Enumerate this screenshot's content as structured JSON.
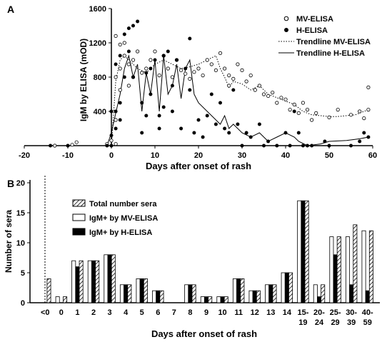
{
  "chart_data": [
    {
      "panel": "A",
      "type": "scatter",
      "xlabel": "Days after onset of rash",
      "ylabel": "IgM by ELISA (mOD)",
      "xlim": [
        -20,
        60
      ],
      "ylim": [
        0,
        1600
      ],
      "x_ticks": [
        -20,
        -10,
        0,
        10,
        20,
        30,
        40,
        50,
        60
      ],
      "y_ticks": [
        400,
        800,
        1200,
        1600
      ],
      "legend_position": "top-right",
      "series": [
        {
          "name": "MV-ELISA",
          "marker": "open-circle",
          "points": [
            [
              -13,
              0
            ],
            [
              -9,
              10
            ],
            [
              -8,
              40
            ],
            [
              -1,
              20
            ],
            [
              0,
              60
            ],
            [
              1,
              20
            ],
            [
              1,
              300
            ],
            [
              1,
              800
            ],
            [
              1,
              1280
            ],
            [
              2,
              650
            ],
            [
              2,
              900
            ],
            [
              2,
              1180
            ],
            [
              3,
              1050
            ],
            [
              3,
              1200
            ],
            [
              4,
              700
            ],
            [
              4,
              950
            ],
            [
              5,
              800
            ],
            [
              5,
              1000
            ],
            [
              6,
              1100
            ],
            [
              7,
              850
            ],
            [
              8,
              900
            ],
            [
              9,
              1000
            ],
            [
              10,
              1100
            ],
            [
              11,
              820
            ],
            [
              12,
              1050
            ],
            [
              13,
              900
            ],
            [
              14,
              800
            ],
            [
              15,
              1000
            ],
            [
              16,
              880
            ],
            [
              17,
              840
            ],
            [
              18,
              780
            ],
            [
              19,
              860
            ],
            [
              20,
              900
            ],
            [
              21,
              820
            ],
            [
              22,
              1000
            ],
            [
              23,
              950
            ],
            [
              24,
              880
            ],
            [
              25,
              1080
            ],
            [
              26,
              900
            ],
            [
              27,
              700
            ],
            [
              27,
              820
            ],
            [
              28,
              780
            ],
            [
              29,
              950
            ],
            [
              30,
              880
            ],
            [
              31,
              750
            ],
            [
              32,
              820
            ],
            [
              33,
              650
            ],
            [
              34,
              700
            ],
            [
              35,
              600
            ],
            [
              36,
              580
            ],
            [
              37,
              620
            ],
            [
              38,
              500
            ],
            [
              39,
              560
            ],
            [
              40,
              540
            ],
            [
              41,
              420
            ],
            [
              42,
              480
            ],
            [
              43,
              380
            ],
            [
              44,
              500
            ],
            [
              45,
              420
            ],
            [
              46,
              300
            ],
            [
              47,
              380
            ],
            [
              50,
              330
            ],
            [
              52,
              420
            ],
            [
              55,
              360
            ],
            [
              57,
              400
            ],
            [
              58,
              320
            ],
            [
              59,
              680
            ],
            [
              59,
              420
            ]
          ]
        },
        {
          "name": "H-ELISA",
          "marker": "filled-circle",
          "points": [
            [
              -14,
              0
            ],
            [
              -10,
              0
            ],
            [
              -1,
              0
            ],
            [
              0,
              0
            ],
            [
              0,
              120
            ],
            [
              0,
              400
            ],
            [
              1,
              200
            ],
            [
              1,
              400
            ],
            [
              1,
              950
            ],
            [
              2,
              300
            ],
            [
              2,
              500
            ],
            [
              2,
              1050
            ],
            [
              3,
              800
            ],
            [
              3,
              1300
            ],
            [
              4,
              1370
            ],
            [
              4,
              1100
            ],
            [
              5,
              1400
            ],
            [
              5,
              800
            ],
            [
              6,
              1450
            ],
            [
              7,
              500
            ],
            [
              7,
              150
            ],
            [
              8,
              350
            ],
            [
              8,
              850
            ],
            [
              9,
              900
            ],
            [
              9,
              600
            ],
            [
              10,
              1000
            ],
            [
              11,
              350
            ],
            [
              11,
              200
            ],
            [
              12,
              1050
            ],
            [
              12,
              450
            ],
            [
              13,
              1100
            ],
            [
              14,
              700
            ],
            [
              14,
              400
            ],
            [
              15,
              1000
            ],
            [
              16,
              200
            ],
            [
              17,
              900
            ],
            [
              18,
              1250
            ],
            [
              18,
              650
            ],
            [
              19,
              150
            ],
            [
              20,
              300
            ],
            [
              21,
              100
            ],
            [
              22,
              350
            ],
            [
              23,
              600
            ],
            [
              24,
              250
            ],
            [
              25,
              500
            ],
            [
              26,
              200
            ],
            [
              27,
              150
            ],
            [
              28,
              650
            ],
            [
              29,
              250
            ],
            [
              30,
              0
            ],
            [
              31,
              150
            ],
            [
              32,
              100
            ],
            [
              34,
              250
            ],
            [
              35,
              0
            ],
            [
              36,
              50
            ],
            [
              38,
              0
            ],
            [
              40,
              150
            ],
            [
              41,
              0
            ],
            [
              42,
              400
            ],
            [
              43,
              150
            ],
            [
              44,
              0
            ],
            [
              45,
              0
            ],
            [
              46,
              0
            ],
            [
              49,
              50
            ],
            [
              50,
              0
            ],
            [
              55,
              0
            ],
            [
              57,
              50
            ],
            [
              58,
              150
            ],
            [
              59,
              100
            ]
          ]
        },
        {
          "name": "Trendline MV-ELISA",
          "style": "dotted",
          "points": [
            [
              0,
              0
            ],
            [
              1,
              750
            ],
            [
              2,
              1000
            ],
            [
              3,
              1050
            ],
            [
              4,
              1000
            ],
            [
              6,
              900
            ],
            [
              8,
              850
            ],
            [
              10,
              950
            ],
            [
              12,
              1000
            ],
            [
              14,
              950
            ],
            [
              16,
              900
            ],
            [
              18,
              920
            ],
            [
              20,
              950
            ],
            [
              22,
              1000
            ],
            [
              24,
              1050
            ],
            [
              25,
              900
            ],
            [
              26,
              800
            ],
            [
              27,
              680
            ],
            [
              28,
              750
            ],
            [
              30,
              720
            ],
            [
              32,
              650
            ],
            [
              34,
              700
            ],
            [
              36,
              600
            ],
            [
              38,
              560
            ],
            [
              40,
              520
            ],
            [
              42,
              480
            ],
            [
              44,
              400
            ],
            [
              46,
              360
            ],
            [
              48,
              350
            ],
            [
              50,
              340
            ],
            [
              52,
              340
            ],
            [
              54,
              350
            ],
            [
              56,
              360
            ],
            [
              58,
              400
            ],
            [
              59,
              420
            ]
          ]
        },
        {
          "name": "Trendline H-ELISA",
          "style": "solid",
          "points": [
            [
              -1,
              0
            ],
            [
              0,
              150
            ],
            [
              1,
              380
            ],
            [
              2,
              600
            ],
            [
              3,
              900
            ],
            [
              4,
              1050
            ],
            [
              5,
              800
            ],
            [
              6,
              950
            ],
            [
              7,
              400
            ],
            [
              8,
              850
            ],
            [
              9,
              600
            ],
            [
              10,
              1000
            ],
            [
              11,
              400
            ],
            [
              12,
              1050
            ],
            [
              13,
              600
            ],
            [
              14,
              700
            ],
            [
              15,
              950
            ],
            [
              16,
              550
            ],
            [
              17,
              900
            ],
            [
              18,
              1000
            ],
            [
              19,
              600
            ],
            [
              20,
              500
            ],
            [
              22,
              400
            ],
            [
              24,
              300
            ],
            [
              25,
              250
            ],
            [
              26,
              350
            ],
            [
              27,
              200
            ],
            [
              28,
              250
            ],
            [
              30,
              150
            ],
            [
              32,
              100
            ],
            [
              34,
              150
            ],
            [
              36,
              50
            ],
            [
              38,
              100
            ],
            [
              40,
              150
            ],
            [
              42,
              100
            ],
            [
              43,
              50
            ],
            [
              45,
              0
            ],
            [
              48,
              20
            ],
            [
              50,
              50
            ],
            [
              54,
              60
            ],
            [
              57,
              80
            ],
            [
              59,
              100
            ]
          ]
        }
      ]
    },
    {
      "panel": "B",
      "type": "bar",
      "xlabel": "Days after onset of rash",
      "ylabel": "Number of sera",
      "ylim": [
        0,
        20
      ],
      "y_ticks": [
        0,
        5,
        10,
        15,
        20
      ],
      "legend_position": "top-left",
      "categories": [
        "<0",
        "0",
        "1",
        "2",
        "3",
        "4",
        "5",
        "6",
        "7",
        "8",
        "9",
        "10",
        "11",
        "12",
        "13",
        "14",
        "15-\n19",
        "20-\n24",
        "25-\n29",
        "30-\n39",
        "40-\n59"
      ],
      "series": [
        {
          "name": "IgM+ by MV-ELISA",
          "fill": "white",
          "values": [
            0,
            1,
            7,
            7,
            8,
            3,
            4,
            2,
            0,
            3,
            1,
            1,
            4,
            2,
            3,
            5,
            17,
            3,
            11,
            11,
            12
          ]
        },
        {
          "name": "IgM+ by H-ELISA",
          "fill": "black",
          "values": [
            0,
            0,
            6,
            7,
            8,
            3,
            4,
            2,
            0,
            3,
            1,
            1,
            4,
            2,
            3,
            5,
            17,
            1,
            8,
            3,
            2
          ]
        },
        {
          "name": "Total number sera",
          "fill": "hatched",
          "values": [
            4,
            1,
            7,
            7,
            8,
            3,
            4,
            2,
            0,
            3,
            1,
            1,
            4,
            2,
            3,
            5,
            17,
            3,
            11,
            13,
            12
          ]
        }
      ]
    }
  ]
}
